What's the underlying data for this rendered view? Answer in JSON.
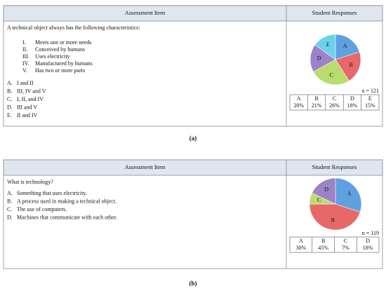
{
  "panels": [
    {
      "caption": "(a)",
      "header": {
        "item": "Assessment Item",
        "responses": "Student Responses"
      },
      "question": "A technical object always has the following characteristics:",
      "statements": [
        {
          "numeral": "I.",
          "text": "Meets one or more needs"
        },
        {
          "numeral": "II.",
          "text": "Conceived by humans"
        },
        {
          "numeral": "III.",
          "text": "Uses electricity"
        },
        {
          "numeral": "IV.",
          "text": "Manufactured by humans"
        },
        {
          "numeral": "V.",
          "text": "Has two or more parts"
        }
      ],
      "options": [
        {
          "letter": "A.",
          "text": "I and II"
        },
        {
          "letter": "B.",
          "text": "III, IV and V"
        },
        {
          "letter": "C.",
          "text": "I, II, and IV"
        },
        {
          "letter": "D.",
          "text": "III and V"
        },
        {
          "letter": "E.",
          "text": "II and IV"
        }
      ],
      "n": "n = 121",
      "chart_data": {
        "type": "pie",
        "categories": [
          "A",
          "B",
          "C",
          "D",
          "E"
        ],
        "values": [
          20,
          21,
          26,
          18,
          15
        ],
        "value_labels": [
          "20%",
          "21%",
          "26%",
          "18%",
          "15%"
        ],
        "colors": [
          "#5fa0e0",
          "#e8686a",
          "#b8dc6e",
          "#9c82c6",
          "#6cd2ea"
        ]
      }
    },
    {
      "caption": "(b)",
      "header": {
        "item": "Assessment Item",
        "responses": "Student Responses"
      },
      "question": "What is technology?",
      "statements": [],
      "options": [
        {
          "letter": "A.",
          "text": "Something that uses electricity."
        },
        {
          "letter": "B.",
          "text": "A process used in making a technical object."
        },
        {
          "letter": "C.",
          "text": "The use of computers."
        },
        {
          "letter": "D.",
          "text": "Machines that communicate with each other."
        }
      ],
      "n": "n = 119",
      "chart_data": {
        "type": "pie",
        "categories": [
          "A",
          "B",
          "C",
          "D"
        ],
        "values": [
          30,
          45,
          7,
          18
        ],
        "value_labels": [
          "30%",
          "45%",
          "7%",
          "18%"
        ],
        "colors": [
          "#5fa0e0",
          "#e8686a",
          "#b8dc6e",
          "#9c82c6"
        ]
      }
    }
  ]
}
